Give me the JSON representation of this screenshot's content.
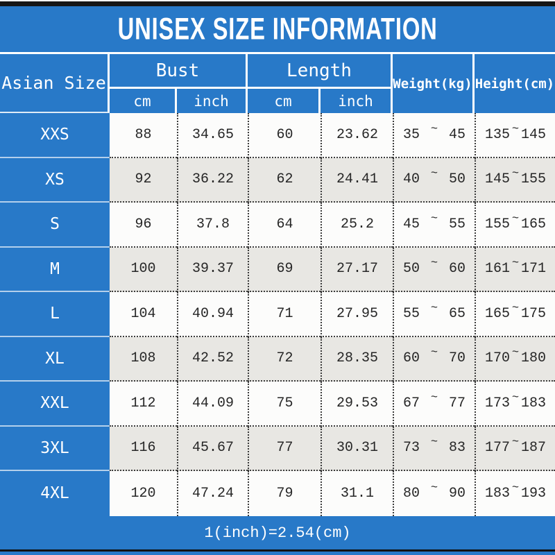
{
  "title": "UNISEX SIZE INFORMATION",
  "colors": {
    "accent_blue": "#2879c8",
    "row_alternate_gray": "#e8e7e3",
    "row_white": "#fcfcfb",
    "divider_black": "#161616",
    "text_dark": "#262626"
  },
  "chart_data": {
    "type": "table",
    "title": "UNISEX SIZE INFORMATION",
    "corner_header": "Asian Size",
    "group_headers": [
      {
        "label": "Bust",
        "subcolumns": [
          "cm",
          "inch"
        ]
      },
      {
        "label": "Length",
        "subcolumns": [
          "cm",
          "inch"
        ]
      }
    ],
    "span_headers": [
      "Weight(kg)",
      "Height(cm)"
    ],
    "range_separator": "~",
    "rows": [
      {
        "size": "XXS",
        "bust_cm": "88",
        "bust_inch": "34.65",
        "length_cm": "60",
        "length_inch": "23.62",
        "weight": {
          "min": "35",
          "max": "45"
        },
        "height": {
          "min": "135",
          "max": "145"
        }
      },
      {
        "size": "XS",
        "bust_cm": "92",
        "bust_inch": "36.22",
        "length_cm": "62",
        "length_inch": "24.41",
        "weight": {
          "min": "40",
          "max": "50"
        },
        "height": {
          "min": "145",
          "max": "155"
        }
      },
      {
        "size": "S",
        "bust_cm": "96",
        "bust_inch": "37.8",
        "length_cm": "64",
        "length_inch": "25.2",
        "weight": {
          "min": "45",
          "max": "55"
        },
        "height": {
          "min": "155",
          "max": "165"
        }
      },
      {
        "size": "M",
        "bust_cm": "100",
        "bust_inch": "39.37",
        "length_cm": "69",
        "length_inch": "27.17",
        "weight": {
          "min": "50",
          "max": "60"
        },
        "height": {
          "min": "161",
          "max": "171"
        }
      },
      {
        "size": "L",
        "bust_cm": "104",
        "bust_inch": "40.94",
        "length_cm": "71",
        "length_inch": "27.95",
        "weight": {
          "min": "55",
          "max": "65"
        },
        "height": {
          "min": "165",
          "max": "175"
        }
      },
      {
        "size": "XL",
        "bust_cm": "108",
        "bust_inch": "42.52",
        "length_cm": "72",
        "length_inch": "28.35",
        "weight": {
          "min": "60",
          "max": "70"
        },
        "height": {
          "min": "170",
          "max": "180"
        }
      },
      {
        "size": "XXL",
        "bust_cm": "112",
        "bust_inch": "44.09",
        "length_cm": "75",
        "length_inch": "29.53",
        "weight": {
          "min": "67",
          "max": "77"
        },
        "height": {
          "min": "173",
          "max": "183"
        }
      },
      {
        "size": "3XL",
        "bust_cm": "116",
        "bust_inch": "45.67",
        "length_cm": "77",
        "length_inch": "30.31",
        "weight": {
          "min": "73",
          "max": "83"
        },
        "height": {
          "min": "177",
          "max": "187"
        }
      },
      {
        "size": "4XL",
        "bust_cm": "120",
        "bust_inch": "47.24",
        "length_cm": "79",
        "length_inch": "31.1",
        "weight": {
          "min": "80",
          "max": "90"
        },
        "height": {
          "min": "183",
          "max": "193"
        }
      }
    ],
    "footnote": "1(inch)=2.54(cm)"
  }
}
